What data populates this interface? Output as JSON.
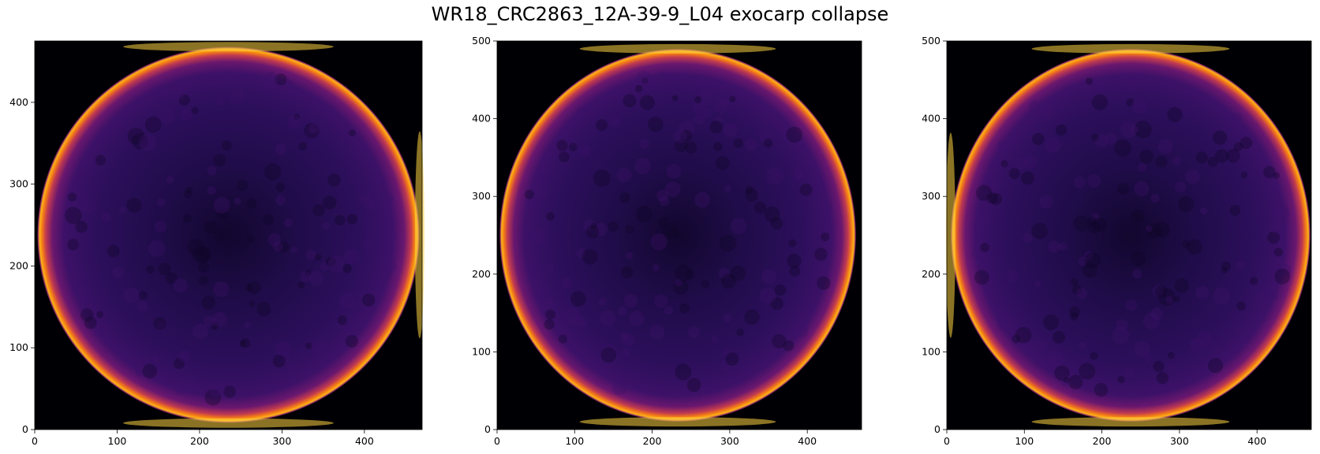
{
  "figure_title": "WR18_CRC2863_12A-39-9_L04 exocarp collapse",
  "chart_data": [
    {
      "type": "heatmap",
      "title": "",
      "xlabel": "",
      "ylabel": "",
      "colormap": "inferno",
      "xlim": [
        0,
        470
      ],
      "ylim": [
        0,
        475
      ],
      "xticks": [
        0,
        100,
        200,
        300,
        400
      ],
      "yticks": [
        0,
        100,
        200,
        300,
        400
      ],
      "grid": false,
      "content": {
        "shape": "bright ring (exocarp) around a dark interior",
        "ring_center": [
          235,
          238
        ],
        "ring_radius": [
          232,
          230
        ],
        "brightest_regions": [
          "top",
          "bottom",
          "right"
        ]
      }
    },
    {
      "type": "heatmap",
      "title": "",
      "xlabel": "",
      "ylabel": "",
      "colormap": "inferno",
      "xlim": [
        0,
        470
      ],
      "ylim": [
        0,
        500
      ],
      "xticks": [
        0,
        100,
        200,
        300,
        400
      ],
      "yticks": [
        0,
        100,
        200,
        300,
        400,
        500
      ],
      "grid": false,
      "content": {
        "shape": "bright elliptical ring around a dark interior",
        "ring_center": [
          233,
          250
        ],
        "ring_radius": [
          230,
          240
        ],
        "brightest_regions": [
          "top",
          "bottom"
        ]
      }
    },
    {
      "type": "heatmap",
      "title": "",
      "xlabel": "",
      "ylabel": "",
      "colormap": "inferno",
      "xlim": [
        0,
        470
      ],
      "ylim": [
        0,
        500
      ],
      "xticks": [
        0,
        100,
        200,
        300,
        400
      ],
      "yticks": [
        0,
        100,
        200,
        300,
        400,
        500
      ],
      "grid": false,
      "content": {
        "shape": "bright elliptical ring around a dark interior",
        "ring_center": [
          237,
          250
        ],
        "ring_radius": [
          232,
          240
        ],
        "brightest_regions": [
          "top",
          "bottom",
          "left"
        ]
      }
    }
  ]
}
